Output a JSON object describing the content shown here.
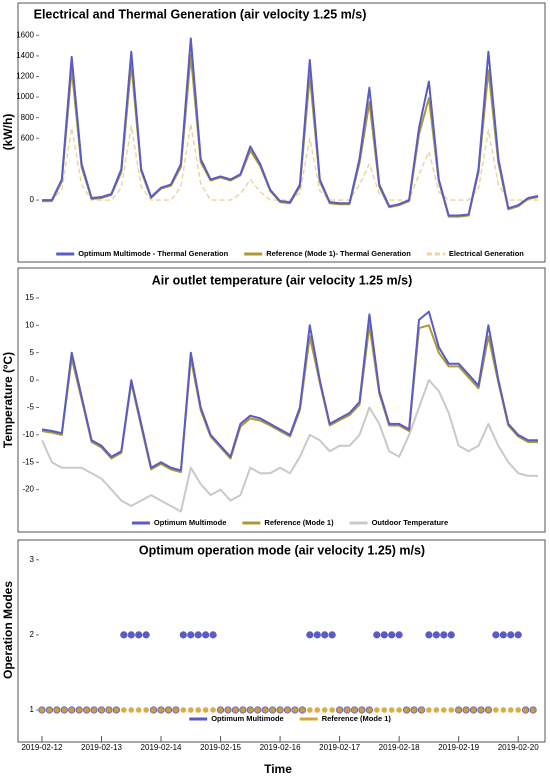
{
  "chart_data": [
    {
      "type": "line",
      "title": "Electrical and Thermal Generation (air velocity 1.25 m/s)",
      "y_label": "(kW/h)",
      "x": [
        0,
        4,
        8,
        12,
        16,
        20,
        24,
        28,
        32,
        36,
        40,
        44,
        48,
        52,
        56,
        60,
        64,
        68,
        72,
        76,
        80,
        84,
        88,
        92,
        96,
        100,
        104,
        108,
        112,
        116,
        120,
        124,
        128,
        132,
        136,
        140,
        144,
        148,
        152,
        156,
        160,
        164,
        168,
        172,
        176,
        180,
        184,
        188,
        192,
        196,
        200
      ],
      "xlim": [
        -2,
        202
      ],
      "ylim": [
        -310,
        1700
      ],
      "yticks": [
        0,
        600,
        800,
        1000,
        1200,
        1400,
        1600
      ],
      "legend": "lower center",
      "series": [
        {
          "name": "Optimum Multimode - Thermal Generation",
          "color": "#5a5cc4",
          "values": [
            0,
            0,
            200,
            1390,
            350,
            20,
            30,
            60,
            300,
            1440,
            300,
            30,
            120,
            150,
            350,
            1570,
            400,
            200,
            230,
            200,
            250,
            520,
            350,
            100,
            -10,
            -20,
            150,
            1360,
            200,
            -20,
            -30,
            -30,
            400,
            1090,
            150,
            -60,
            -40,
            0,
            700,
            1150,
            200,
            -150,
            -150,
            -140,
            300,
            1440,
            400,
            -80,
            -50,
            20,
            40
          ]
        },
        {
          "name": "Reference (Mode 1)- Thermal Generation",
          "color": "#a99a35",
          "values": [
            -10,
            -10,
            180,
            1270,
            320,
            10,
            20,
            50,
            270,
            1320,
            280,
            20,
            110,
            140,
            320,
            1410,
            370,
            190,
            220,
            190,
            240,
            480,
            330,
            90,
            -20,
            -30,
            130,
            1210,
            180,
            -30,
            -40,
            -40,
            360,
            950,
            130,
            -70,
            -50,
            -10,
            640,
            990,
            180,
            -160,
            -160,
            -150,
            270,
            1260,
            360,
            -90,
            -60,
            10,
            30
          ]
        },
        {
          "name": "Electrical Generation",
          "color": "#ead49c",
          "linestyle": "dashed",
          "values": [
            0,
            0,
            100,
            700,
            150,
            0,
            0,
            0,
            120,
            720,
            130,
            0,
            0,
            0,
            130,
            740,
            160,
            0,
            0,
            0,
            60,
            200,
            80,
            0,
            0,
            0,
            70,
            600,
            90,
            0,
            0,
            0,
            150,
            350,
            60,
            0,
            0,
            0,
            250,
            470,
            80,
            0,
            0,
            0,
            110,
            680,
            150,
            0,
            0,
            0,
            0
          ]
        }
      ]
    },
    {
      "type": "line",
      "title": "Air outlet temperature (air velocity 1.25 m/s)",
      "y_label": "Temperature (ºC)",
      "x": [
        0,
        4,
        8,
        12,
        16,
        20,
        24,
        28,
        32,
        36,
        40,
        44,
        48,
        52,
        56,
        60,
        64,
        68,
        72,
        76,
        80,
        84,
        88,
        92,
        96,
        100,
        104,
        108,
        112,
        116,
        120,
        124,
        128,
        132,
        136,
        140,
        144,
        148,
        152,
        156,
        160,
        164,
        168,
        172,
        176,
        180,
        184,
        188,
        192,
        196,
        200
      ],
      "xlim": [
        -2,
        202
      ],
      "ylim": [
        -25,
        17
      ],
      "yticks": [
        -20,
        -15,
        -10,
        -5,
        0,
        5,
        10,
        15
      ],
      "legend": "lower center",
      "series": [
        {
          "name": "Optimum Multimode",
          "color": "#5a5cc4",
          "values": [
            -9,
            -9.3,
            -9.7,
            5,
            -3,
            -11,
            -12,
            -14,
            -13,
            0,
            -8,
            -16,
            -15,
            -16,
            -16.5,
            5,
            -5,
            -10,
            -12,
            -14,
            -8,
            -6.5,
            -7,
            -8,
            -9,
            -10,
            -5,
            10,
            0,
            -8,
            -7,
            -6,
            -4,
            12,
            -2,
            -8,
            -8,
            -9,
            11,
            12.5,
            6,
            3,
            3,
            1,
            -1,
            10,
            0,
            -8,
            -10,
            -11,
            -11
          ]
        },
        {
          "name": "Reference (Mode 1)",
          "color": "#a99a35",
          "values": [
            -9.3,
            -9.6,
            -10,
            4,
            -3.5,
            -11.3,
            -12.3,
            -14.3,
            -13.3,
            -0.5,
            -8.5,
            -16.3,
            -15.3,
            -16.3,
            -16.8,
            4,
            -5.5,
            -10.3,
            -12.3,
            -14.3,
            -8.5,
            -7,
            -7.4,
            -8.3,
            -9.3,
            -10.3,
            -5.5,
            8,
            -0.5,
            -8.3,
            -7.3,
            -6.4,
            -4.5,
            10,
            -2.5,
            -8.3,
            -8.3,
            -9.3,
            9.5,
            10,
            5,
            2.5,
            2.5,
            0.5,
            -1.5,
            8,
            -0.5,
            -8.3,
            -10.3,
            -11.3,
            -11.3
          ]
        },
        {
          "name": "Outdoor Temperature",
          "color": "#c9c9c9",
          "values": [
            -11,
            -15,
            -16,
            -16,
            -16,
            -17,
            -18,
            -20,
            -22,
            -23,
            -22,
            -21,
            -22,
            -23,
            -24,
            -16,
            -19,
            -21,
            -20,
            -22,
            -21,
            -16,
            -17,
            -17,
            -16,
            -17,
            -14,
            -10,
            -11,
            -13,
            -12,
            -12,
            -10,
            -5,
            -8,
            -13,
            -14,
            -10,
            -5,
            0,
            -2,
            -6,
            -12,
            -13,
            -12,
            -8,
            -12,
            -15,
            -17,
            -17.5,
            -17.5
          ]
        }
      ]
    },
    {
      "type": "scatter",
      "title": "Optimum operation mode (air velocity 1.25) m/s)",
      "y_label": "Operation Modes",
      "x_label": "Time",
      "x": [
        0,
        3,
        6,
        9,
        12,
        15,
        18,
        21,
        24,
        27,
        30,
        33,
        36,
        39,
        42,
        45,
        48,
        51,
        54,
        57,
        60,
        63,
        66,
        69,
        72,
        75,
        78,
        81,
        84,
        87,
        90,
        93,
        96,
        99,
        102,
        105,
        108,
        111,
        114,
        117,
        120,
        123,
        126,
        129,
        132,
        135,
        138,
        141,
        144,
        147,
        150,
        153,
        156,
        159,
        162,
        165,
        168,
        171,
        174,
        177,
        180,
        183,
        186,
        189,
        192,
        195,
        198
      ],
      "xlim": [
        -2,
        202
      ],
      "ylim": [
        0.8,
        3.05
      ],
      "yticks": [
        1,
        2,
        3
      ],
      "legend": "lower center",
      "xticks": [
        {
          "value": 0,
          "label": "2019-02-12"
        },
        {
          "value": 24,
          "label": "2019-02-13"
        },
        {
          "value": 48,
          "label": "2019-02-14"
        },
        {
          "value": 72,
          "label": "2019-02-15"
        },
        {
          "value": 96,
          "label": "2019-02-16"
        },
        {
          "value": 120,
          "label": "2019-02-17"
        },
        {
          "value": 144,
          "label": "2019-02-18"
        },
        {
          "value": 168,
          "label": "2019-02-19"
        },
        {
          "value": 192,
          "label": "2019-02-20"
        }
      ],
      "series": [
        {
          "name": "Optimum Multimode",
          "color": "#5a5cc4",
          "values": [
            1,
            1,
            1,
            1,
            1,
            1,
            1,
            1,
            1,
            1,
            1,
            2,
            2,
            2,
            2,
            1,
            1,
            1,
            1,
            2,
            2,
            2,
            2,
            2,
            1,
            1,
            1,
            1,
            1,
            1,
            1,
            1,
            1,
            1,
            1,
            1,
            2,
            2,
            2,
            2,
            1,
            1,
            1,
            1,
            1,
            2,
            2,
            2,
            2,
            1,
            1,
            1,
            2,
            2,
            2,
            2,
            1,
            1,
            1,
            1,
            1,
            2,
            2,
            2,
            2,
            1,
            1
          ]
        },
        {
          "name": "Reference (Mode 1)",
          "color": "#d6a437",
          "values": [
            1,
            1,
            1,
            1,
            1,
            1,
            1,
            1,
            1,
            1,
            1,
            1,
            1,
            1,
            1,
            1,
            1,
            1,
            1,
            1,
            1,
            1,
            1,
            1,
            1,
            1,
            1,
            1,
            1,
            1,
            1,
            1,
            1,
            1,
            1,
            1,
            1,
            1,
            1,
            1,
            1,
            1,
            1,
            1,
            1,
            1,
            1,
            1,
            1,
            1,
            1,
            1,
            1,
            1,
            1,
            1,
            1,
            1,
            1,
            1,
            1,
            1,
            1,
            1,
            1,
            1,
            1
          ]
        }
      ]
    }
  ]
}
